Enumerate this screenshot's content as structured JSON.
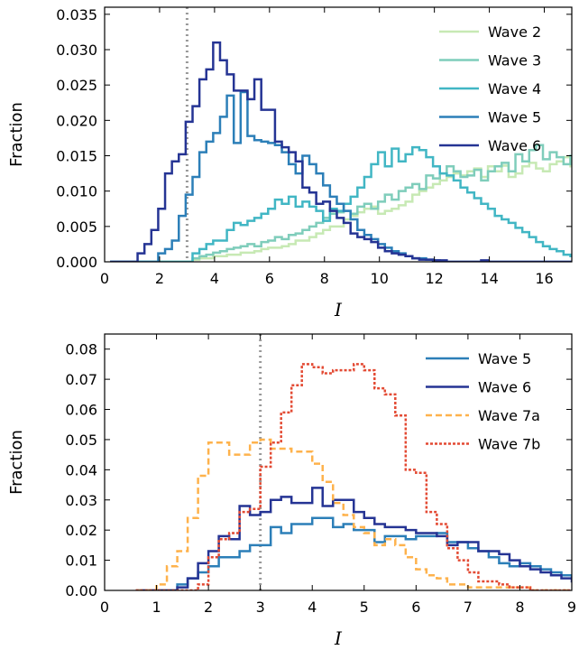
{
  "chart_data": [
    {
      "type": "line",
      "step": true,
      "xlabel": "I",
      "ylabel": "Fraction",
      "xlim": [
        0,
        17
      ],
      "ylim": [
        0,
        0.036
      ],
      "xticks": [
        0,
        2,
        4,
        6,
        8,
        10,
        12,
        14,
        16
      ],
      "xtick_labels": [
        "0",
        "2",
        "4",
        "6",
        "8",
        "10",
        "12",
        "14",
        "16"
      ],
      "yticks": [
        0,
        0.005,
        0.01,
        0.015,
        0.02,
        0.025,
        0.03,
        0.035
      ],
      "ytick_labels": [
        "0.000",
        "0.005",
        "0.010",
        "0.015",
        "0.020",
        "0.025",
        "0.030",
        "0.035"
      ],
      "vline": 3,
      "vline_color": "#999999",
      "legend_position": "top-right",
      "bin_start": 0.2,
      "bin_width": 0.25,
      "series": [
        {
          "name": "Wave 2",
          "color": "#c7e9b4",
          "dash": "",
          "values": [
            0,
            0,
            0,
            0,
            0,
            0,
            0,
            0,
            0,
            0,
            0,
            0,
            0.0003,
            0.0005,
            0.0005,
            0.0008,
            0.0008,
            0.001,
            0.001,
            0.0013,
            0.0013,
            0.0015,
            0.0018,
            0.002,
            0.002,
            0.0022,
            0.0025,
            0.003,
            0.003,
            0.0035,
            0.004,
            0.0045,
            0.005,
            0.005,
            0.006,
            0.0065,
            0.007,
            0.0075,
            0.0078,
            0.0068,
            0.0072,
            0.0075,
            0.008,
            0.0085,
            0.0095,
            0.01,
            0.0105,
            0.011,
            0.0115,
            0.012,
            0.0125,
            0.0122,
            0.0128,
            0.0132,
            0.012,
            0.0135,
            0.0128,
            0.0136,
            0.012,
            0.0125,
            0.0135,
            0.014,
            0.0132,
            0.0128,
            0.0138,
            0.0142,
            0.0148,
            0.0135,
            0.0145,
            0.014,
            0.0138,
            0.0135,
            0.013,
            0.0125,
            0.011,
            0.0105,
            0.0115,
            0.01,
            0.011,
            0.0098,
            0.0102
          ]
        },
        {
          "name": "Wave 3",
          "color": "#7fcdbb",
          "dash": "",
          "values": [
            0,
            0,
            0,
            0,
            0,
            0,
            0,
            0,
            0,
            0,
            0,
            0,
            0.0005,
            0.0008,
            0.001,
            0.0013,
            0.0015,
            0.0018,
            0.002,
            0.0022,
            0.0025,
            0.0022,
            0.0028,
            0.003,
            0.0035,
            0.0032,
            0.0038,
            0.004,
            0.0045,
            0.005,
            0.0055,
            0.0062,
            0.0068,
            0.007,
            0.0072,
            0.0068,
            0.0078,
            0.0082,
            0.0075,
            0.0085,
            0.0095,
            0.0088,
            0.01,
            0.0105,
            0.011,
            0.0103,
            0.0122,
            0.0118,
            0.0125,
            0.0135,
            0.0128,
            0.012,
            0.0122,
            0.013,
            0.0115,
            0.0128,
            0.0135,
            0.014,
            0.0128,
            0.0152,
            0.0142,
            0.0158,
            0.0165,
            0.0145,
            0.0155,
            0.0148,
            0.0138,
            0.015,
            0.0145,
            0.0142,
            0.0138,
            0.013,
            0.0125,
            0.0112,
            0.0105,
            0.0115,
            0.0095,
            0.0085,
            0.0075,
            0.0075,
            0.0072
          ]
        },
        {
          "name": "Wave 4",
          "color": "#41b6c4",
          "dash": "",
          "values": [
            0,
            0,
            0,
            0,
            0,
            0,
            0,
            0,
            0,
            0,
            0,
            0,
            0.0012,
            0.0018,
            0.0025,
            0.003,
            0.003,
            0.0045,
            0.0055,
            0.0052,
            0.0058,
            0.0062,
            0.0068,
            0.0075,
            0.0088,
            0.0082,
            0.0092,
            0.0078,
            0.0085,
            0.0078,
            0.0072,
            0.0058,
            0.0075,
            0.0072,
            0.0082,
            0.0092,
            0.0105,
            0.012,
            0.0138,
            0.0155,
            0.0135,
            0.016,
            0.0142,
            0.0152,
            0.0162,
            0.0158,
            0.0148,
            0.0135,
            0.0125,
            0.0122,
            0.0115,
            0.0105,
            0.0098,
            0.009,
            0.0082,
            0.0075,
            0.0065,
            0.006,
            0.0055,
            0.0048,
            0.0042,
            0.0035,
            0.0028,
            0.0022,
            0.0018,
            0.0015,
            0.001,
            0.0008,
            0.0005,
            0.0005,
            0.0003,
            0.0003,
            0.0002,
            0,
            0,
            0,
            0,
            0,
            0,
            0,
            0
          ]
        },
        {
          "name": "Wave 5",
          "color": "#2c7fb8",
          "dash": "",
          "values": [
            0,
            0,
            0,
            0,
            0,
            0,
            0,
            0.0012,
            0.0018,
            0.003,
            0.0065,
            0.0095,
            0.012,
            0.0155,
            0.017,
            0.0182,
            0.0205,
            0.0235,
            0.0168,
            0.024,
            0.0178,
            0.0172,
            0.017,
            0.0168,
            0.0165,
            0.0155,
            0.0138,
            0.0125,
            0.015,
            0.0138,
            0.0125,
            0.0108,
            0.0092,
            0.0082,
            0.0072,
            0.006,
            0.0045,
            0.0038,
            0.0032,
            0.0025,
            0.002,
            0.0015,
            0.0012,
            0.0008,
            0.0005,
            0.0005,
            0.0003,
            0.0002,
            0,
            0,
            0,
            0,
            0,
            0,
            0,
            0,
            0,
            0,
            0,
            0,
            0,
            0,
            0,
            0,
            0,
            0,
            0,
            0,
            0,
            0,
            0,
            0,
            0,
            0,
            0,
            0,
            0,
            0,
            0,
            0,
            0
          ]
        },
        {
          "name": "Wave 6",
          "color": "#253494",
          "dash": "",
          "values": [
            0,
            0,
            0,
            0,
            0.0012,
            0.0025,
            0.0045,
            0.0075,
            0.0125,
            0.0142,
            0.0152,
            0.0198,
            0.022,
            0.0258,
            0.0272,
            0.031,
            0.0285,
            0.0265,
            0.0242,
            0.0242,
            0.023,
            0.0258,
            0.0215,
            0.0215,
            0.017,
            0.0162,
            0.0155,
            0.0142,
            0.0105,
            0.0098,
            0.0082,
            0.0085,
            0.0072,
            0.0062,
            0.0055,
            0.004,
            0.0035,
            0.0032,
            0.0028,
            0.002,
            0.0015,
            0.0012,
            0.001,
            0.0008,
            0.0005,
            0.0003,
            0.0003,
            0.0002,
            0.0002,
            0,
            0,
            0,
            0,
            0,
            0.0002,
            0,
            0,
            0,
            0,
            0,
            0,
            0,
            0,
            0,
            0,
            0,
            0,
            0,
            0,
            0,
            0,
            0,
            0,
            0,
            0,
            0,
            0,
            0,
            0,
            0,
            0
          ]
        }
      ]
    },
    {
      "type": "line",
      "step": true,
      "xlabel": "I",
      "ylabel": "Fraction",
      "xlim": [
        0,
        9
      ],
      "ylim": [
        0,
        0.085
      ],
      "xticks": [
        0,
        1,
        2,
        3,
        4,
        5,
        6,
        7,
        8,
        9
      ],
      "xtick_labels": [
        "0",
        "1",
        "2",
        "3",
        "4",
        "5",
        "6",
        "7",
        "8",
        "9"
      ],
      "yticks": [
        0,
        0.01,
        0.02,
        0.03,
        0.04,
        0.05,
        0.06,
        0.07,
        0.08
      ],
      "ytick_labels": [
        "0.00",
        "0.01",
        "0.02",
        "0.03",
        "0.04",
        "0.05",
        "0.06",
        "0.07",
        "0.08"
      ],
      "vline": 3,
      "vline_color": "#999999",
      "legend_position": "top-right",
      "bin_start": 0.6,
      "bin_width": 0.2,
      "series": [
        {
          "name": "Wave 5",
          "color": "#2c7fb8",
          "dash": "",
          "values": [
            0,
            0,
            0,
            0,
            0.002,
            0.004,
            0.006,
            0.008,
            0.011,
            0.011,
            0.013,
            0.015,
            0.015,
            0.021,
            0.019,
            0.022,
            0.022,
            0.024,
            0.024,
            0.021,
            0.022,
            0.02,
            0.02,
            0.016,
            0.018,
            0.018,
            0.017,
            0.018,
            0.018,
            0.019,
            0.016,
            0.016,
            0.014,
            0.013,
            0.011,
            0.009,
            0.008,
            0.009,
            0.008,
            0.007,
            0.006,
            0.005,
            0.004,
            0.003,
            0.002
          ]
        },
        {
          "name": "Wave 6",
          "color": "#253494",
          "dash": "",
          "values": [
            0,
            0,
            0,
            0,
            0.001,
            0.004,
            0.009,
            0.013,
            0.018,
            0.017,
            0.028,
            0.025,
            0.026,
            0.03,
            0.031,
            0.029,
            0.029,
            0.034,
            0.028,
            0.03,
            0.03,
            0.026,
            0.024,
            0.022,
            0.021,
            0.021,
            0.02,
            0.019,
            0.019,
            0.018,
            0.015,
            0.016,
            0.016,
            0.013,
            0.013,
            0.012,
            0.01,
            0.008,
            0.007,
            0.006,
            0.005,
            0.004,
            0.003,
            0.003,
            0.002
          ]
        },
        {
          "name": "Wave 7a",
          "color": "#feb24c",
          "dash": "7,4",
          "values": [
            0,
            0,
            0.002,
            0.008,
            0.013,
            0.024,
            0.038,
            0.049,
            0.049,
            0.045,
            0.045,
            0.049,
            0.05,
            0.047,
            0.047,
            0.046,
            0.046,
            0.042,
            0.036,
            0.029,
            0.025,
            0.021,
            0.019,
            0.015,
            0.017,
            0.015,
            0.011,
            0.007,
            0.005,
            0.004,
            0.002,
            0.002,
            0.001,
            0.001,
            0.001,
            0.001,
            0.001,
            0.001,
            0,
            0,
            0,
            0,
            0,
            0,
            0
          ]
        },
        {
          "name": "Wave 7b",
          "color": "#e34a33",
          "dash": "3,2",
          "values": [
            0,
            0,
            0,
            0,
            0,
            0,
            0.002,
            0.011,
            0.017,
            0.019,
            0.026,
            0.027,
            0.041,
            0.049,
            0.059,
            0.068,
            0.075,
            0.074,
            0.072,
            0.073,
            0.073,
            0.075,
            0.073,
            0.067,
            0.065,
            0.058,
            0.04,
            0.039,
            0.026,
            0.022,
            0.014,
            0.01,
            0.006,
            0.003,
            0.003,
            0.002,
            0.001,
            0.001,
            0,
            0,
            0,
            0,
            0,
            0,
            0
          ]
        }
      ]
    }
  ]
}
